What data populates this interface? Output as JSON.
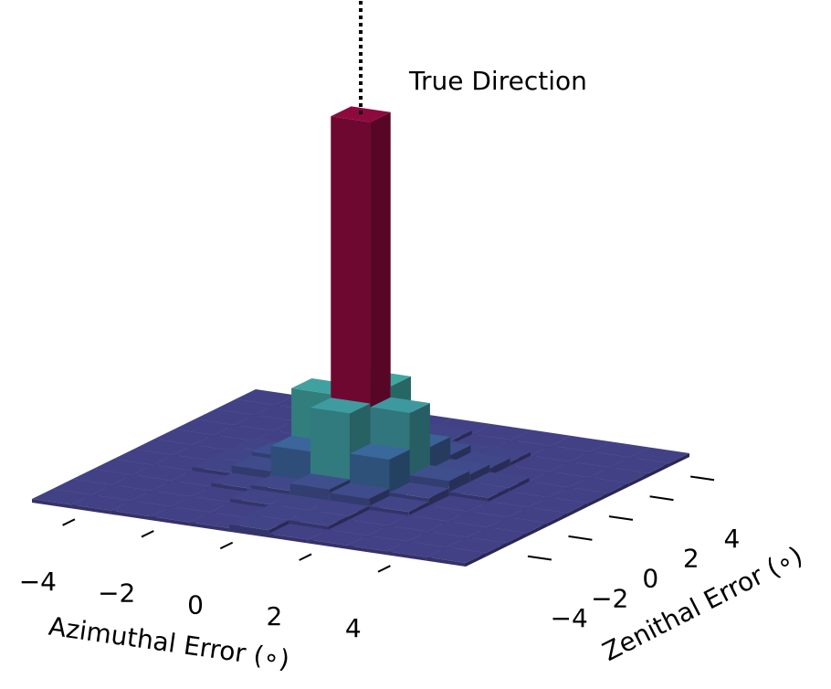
{
  "chart_data": {
    "type": "bar3d",
    "annotation": "True Direction",
    "x_label": "Azimuthal Error (∘)",
    "y_label": "Zenithal Error (∘)",
    "xbins": [
      -5.5,
      -4.5,
      -3.5,
      -2.5,
      -1.5,
      -0.5,
      0.5,
      1.5,
      2.5,
      3.5,
      4.5,
      5.5
    ],
    "ybins": [
      -5.5,
      -4.5,
      -3.5,
      -2.5,
      -1.5,
      -0.5,
      0.5,
      1.5,
      2.5,
      3.5,
      4.5,
      5.5
    ],
    "values": [
      [
        1,
        1,
        1,
        1,
        1,
        2,
        1,
        1,
        1,
        1,
        1
      ],
      [
        1,
        1,
        1,
        1,
        1,
        2,
        2,
        1,
        1,
        1,
        1
      ],
      [
        1,
        1,
        1,
        1,
        2,
        2,
        2,
        1,
        1,
        1,
        1
      ],
      [
        1,
        1,
        1,
        2,
        3,
        5,
        4,
        2,
        1,
        1,
        1
      ],
      [
        1,
        1,
        2,
        4,
        11,
        23,
        12,
        3,
        1,
        1,
        1
      ],
      [
        1,
        1,
        2,
        5,
        24,
        100,
        22,
        5,
        2,
        1,
        1
      ],
      [
        1,
        1,
        2,
        3,
        12,
        25,
        10,
        4,
        2,
        1,
        1
      ],
      [
        1,
        1,
        1,
        2,
        4,
        6,
        5,
        3,
        1,
        1,
        1
      ],
      [
        1,
        1,
        1,
        1,
        2,
        2,
        2,
        2,
        1,
        1,
        1
      ],
      [
        1,
        1,
        1,
        1,
        1,
        2,
        1,
        1,
        1,
        1,
        1
      ],
      [
        1,
        1,
        1,
        1,
        1,
        1,
        1,
        1,
        1,
        1,
        1
      ]
    ],
    "xlim": [
      -5.5,
      5.5
    ],
    "ylim": [
      -5.5,
      5.5
    ],
    "zlim": [
      0,
      100
    ],
    "xticks": [
      {
        "value": -4,
        "label": "−4"
      },
      {
        "value": -2,
        "label": "−2"
      },
      0,
      2,
      4
    ],
    "yticks": [
      {
        "value": -4,
        "label": "−4"
      },
      {
        "value": -2,
        "label": "−2"
      },
      0,
      2,
      4
    ],
    "colormap": [
      "#433d84",
      "#3a6a9e",
      "#3fa6a0",
      "#a3d9a0",
      "#eef2a0",
      "#fdc474",
      "#f06a45",
      "#c9304c",
      "#8e0a3e"
    ]
  }
}
